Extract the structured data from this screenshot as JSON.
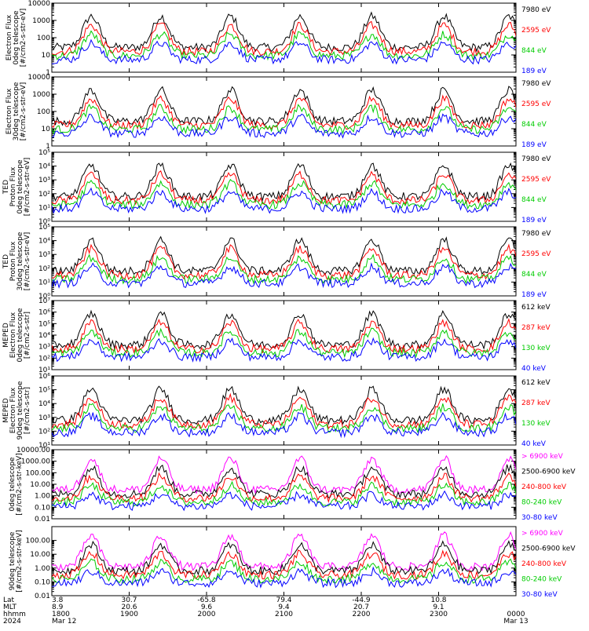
{
  "chart_data": {
    "type": "line",
    "panels": [
      {
        "ylabel": "Electron Flux\n0deg telescope\n[#/cm2-s-str-eV]",
        "scale": "log",
        "ylim": [
          1,
          10000
        ],
        "yticks": [
          1,
          10,
          100,
          1000,
          10000
        ],
        "ytick_labels": [
          "1",
          "10",
          "100",
          "1000",
          "10000"
        ],
        "series": [
          {
            "name": "7980 eV",
            "color": "#000000"
          },
          {
            "name": "2595 eV",
            "color": "#ff0000"
          },
          {
            "name": "844 eV",
            "color": "#00cc00"
          },
          {
            "name": "189 eV",
            "color": "#0000ff"
          }
        ]
      },
      {
        "ylabel": "Electron Flux\n30deg telescope\n[#/cm2-s-str-eV]",
        "scale": "log",
        "ylim": [
          1,
          10000
        ],
        "yticks": [
          1,
          10,
          100,
          1000,
          10000
        ],
        "ytick_labels": [
          "1",
          "10",
          "100",
          "1000",
          "10000"
        ],
        "series": [
          {
            "name": "7980 eV",
            "color": "#000000"
          },
          {
            "name": "2595 eV",
            "color": "#ff0000"
          },
          {
            "name": "844 eV",
            "color": "#00cc00"
          },
          {
            "name": "189 eV",
            "color": "#0000ff"
          }
        ]
      },
      {
        "ylabel": "TED\nProton Flux\n0deg telescope\n[#/cm2-s-str-eV]",
        "scale": "log",
        "ylim": [
          1,
          100000
        ],
        "yticks": [
          1,
          10,
          100,
          1000,
          10000,
          100000
        ],
        "ytick_labels": [
          "10⁰",
          "10¹",
          "10²",
          "10³",
          "10⁴",
          "10⁵"
        ],
        "series": [
          {
            "name": "7980 eV",
            "color": "#000000"
          },
          {
            "name": "2595 eV",
            "color": "#ff0000"
          },
          {
            "name": "844 eV",
            "color": "#00cc00"
          },
          {
            "name": "189 eV",
            "color": "#0000ff"
          }
        ]
      },
      {
        "ylabel": "TED\nProton Flux\n30deg telescope\n[#/cm2-s-str-eV]",
        "scale": "log",
        "ylim": [
          1,
          100000
        ],
        "yticks": [
          1,
          10,
          100,
          1000,
          10000,
          100000
        ],
        "ytick_labels": [
          "10⁰",
          "10¹",
          "10²",
          "10³",
          "10⁴",
          "10⁵"
        ],
        "series": [
          {
            "name": "7980 eV",
            "color": "#000000"
          },
          {
            "name": "2595 eV",
            "color": "#ff0000"
          },
          {
            "name": "844 eV",
            "color": "#00cc00"
          },
          {
            "name": "189 eV",
            "color": "#0000ff"
          }
        ]
      },
      {
        "ylabel": "MEPED\nElectron Flux\n0deg telescope\n[#/cm2-s-str]",
        "scale": "log",
        "ylim": [
          10,
          10000000
        ],
        "yticks": [
          10,
          100,
          1000,
          10000,
          100000,
          1000000,
          10000000
        ],
        "ytick_labels": [
          "10¹",
          "10²",
          "10³",
          "10⁴",
          "10⁵",
          "10⁶",
          "10⁷"
        ],
        "series": [
          {
            "name": "612 keV",
            "color": "#000000"
          },
          {
            "name": "287 keV",
            "color": "#ff0000"
          },
          {
            "name": "130 keV",
            "color": "#00cc00"
          },
          {
            "name": "40 keV",
            "color": "#0000ff"
          }
        ]
      },
      {
        "ylabel": "MEPED\nElectron Flux\n90deg telescope\n[#/cm2-s-str]",
        "scale": "log",
        "ylim": [
          10,
          1000000
        ],
        "yticks": [
          10,
          100,
          1000,
          10000,
          100000,
          1000000
        ],
        "ytick_labels": [
          "10¹",
          "10²",
          "10³",
          "10⁴",
          "10⁵",
          "10⁶"
        ],
        "series": [
          {
            "name": "612 keV",
            "color": "#000000"
          },
          {
            "name": "287 keV",
            "color": "#ff0000"
          },
          {
            "name": "130 keV",
            "color": "#00cc00"
          },
          {
            "name": "40 keV",
            "color": "#0000ff"
          }
        ]
      },
      {
        "ylabel": "0deg telescope\n[#/cm2-s-str-keV]",
        "scale": "log",
        "ylim": [
          0.01,
          10000
        ],
        "yticks": [
          0.01,
          0.1,
          1,
          10,
          100,
          1000,
          10000
        ],
        "ytick_labels": [
          "0.01",
          "0.10",
          "1.00",
          "10.00",
          "100.00",
          "1000.00",
          "10000.00"
        ],
        "series": [
          {
            "name": "> 6900 keV",
            "color": "#ff00ff"
          },
          {
            "name": "2500-6900 keV",
            "color": "#000000"
          },
          {
            "name": "240-800 keV",
            "color": "#ff0000"
          },
          {
            "name": "80-240 keV",
            "color": "#00cc00"
          },
          {
            "name": "30-80 keV",
            "color": "#0000ff"
          }
        ]
      },
      {
        "ylabel": "90deg telescope\n[#/cm2-s-str-keV]",
        "scale": "log",
        "ylim": [
          0.01,
          1000
        ],
        "yticks": [
          0.01,
          0.1,
          1,
          10,
          100
        ],
        "ytick_labels": [
          "0.01",
          "0.10",
          "1.00",
          "10.00",
          "100.00"
        ],
        "series": [
          {
            "name": "> 6900 keV",
            "color": "#ff00ff"
          },
          {
            "name": "2500-6900 keV",
            "color": "#000000"
          },
          {
            "name": "240-800 keV",
            "color": "#ff0000"
          },
          {
            "name": "80-240 keV",
            "color": "#00cc00"
          },
          {
            "name": "30-80 keV",
            "color": "#0000ff"
          }
        ]
      }
    ],
    "xaxis": {
      "row_labels": [
        "Lat",
        "MLT",
        "hhmm",
        "2024"
      ],
      "ticks": [
        {
          "lat": "3.8",
          "mlt": "8.9",
          "time": "1800",
          "date": "Mar 12"
        },
        {
          "lat": "30.7",
          "mlt": "20.6",
          "time": "1900",
          "date": ""
        },
        {
          "lat": "-65.8",
          "mlt": "9.6",
          "time": "2000",
          "date": ""
        },
        {
          "lat": "79.4",
          "mlt": "9.4",
          "time": "2100",
          "date": ""
        },
        {
          "lat": "-44.9",
          "mlt": "20.7",
          "time": "2200",
          "date": ""
        },
        {
          "lat": "10.8",
          "mlt": "9.1",
          "time": "2300",
          "date": ""
        },
        {
          "lat": "",
          "mlt": "",
          "time": "0000",
          "date": "Mar 13"
        }
      ]
    },
    "grid": false,
    "legend": "right"
  }
}
